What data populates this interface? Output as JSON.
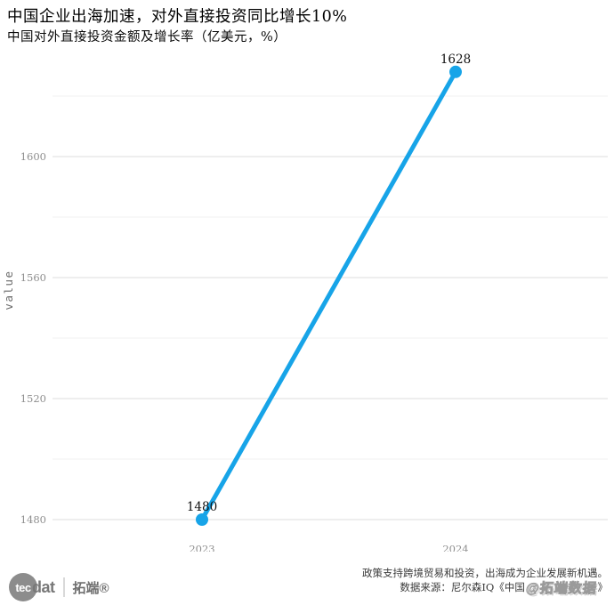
{
  "chart_data": {
    "type": "line",
    "title": "中国企业出海加速，对外直接投资同比增长10%",
    "subtitle": "中国对外直接投资金额及增长率（亿美元，%）",
    "categories": [
      "2023",
      "2024"
    ],
    "series": [
      {
        "name": "value",
        "values": [
          1480,
          1628
        ]
      }
    ],
    "point_labels": [
      "1480",
      "1628"
    ],
    "xlabel": "",
    "ylabel": "value",
    "yticks_labeled": [
      1480,
      1520,
      1560,
      1600
    ],
    "yticks_unlabeled": [
      1500,
      1540,
      1580,
      1620
    ],
    "ylim": [
      1475,
      1631
    ],
    "grid": "horizontal",
    "legend": "none",
    "colors": {
      "line": "#17a4e8",
      "point": "#17a4e8",
      "grid_major": "#e3e3e3",
      "grid_minor": "#f0f0f0",
      "tick_label": "#8f8f8f",
      "data_label": "#111111",
      "axis_title": "#6a6a6a"
    }
  },
  "footer": {
    "logo": {
      "circle_text": "tec",
      "wordmark": "dat",
      "brand_cn": "拓端®"
    },
    "note_line1": "政策支持跨境贸易和投资，出海成为企业发展新机遇。",
    "note_line2_prefix": "数据来源：尼尔森IQ《中国",
    "note_line2_suffix": "》",
    "watermark": "@拓端数据"
  }
}
